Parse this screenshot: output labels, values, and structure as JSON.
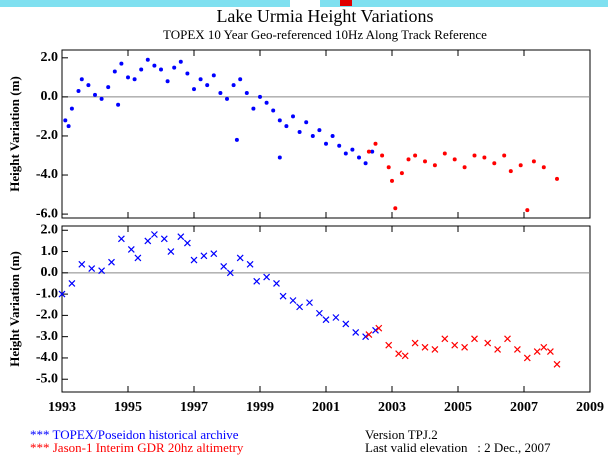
{
  "chart_data": [
    {
      "type": "scatter",
      "title": "Lake Urmia Height Variations",
      "subtitle": "TOPEX 10 Year Geo-referenced 10Hz Along Track Reference",
      "ylabel": "Height Variation (m)",
      "marker": "dot",
      "xlim": [
        1993,
        2009
      ],
      "ylim": [
        -6.2,
        2.4
      ],
      "yticks": [
        {
          "value": 2,
          "label": "2.0"
        },
        {
          "value": 0,
          "label": "0.0"
        },
        {
          "value": -2,
          "label": "-2.0"
        },
        {
          "value": -4,
          "label": "-4.0"
        },
        {
          "value": -6,
          "label": "-6.0"
        }
      ],
      "series": [
        {
          "name": "*** TOPEX/Poseidon historical archive",
          "color": "#0000ff",
          "x": [
            1993.1,
            1993.2,
            1993.3,
            1993.5,
            1993.6,
            1993.8,
            1994.0,
            1994.2,
            1994.4,
            1994.6,
            1994.7,
            1994.8,
            1995.0,
            1995.2,
            1995.4,
            1995.6,
            1995.8,
            1996.0,
            1996.2,
            1996.4,
            1996.6,
            1996.8,
            1997.0,
            1997.2,
            1997.4,
            1997.6,
            1997.8,
            1998.0,
            1998.2,
            1998.3,
            1998.4,
            1998.6,
            1998.8,
            1999.0,
            1999.2,
            1999.4,
            1999.6,
            1999.6,
            1999.8,
            2000.0,
            2000.2,
            2000.4,
            2000.6,
            2000.8,
            2001.0,
            2001.2,
            2001.4,
            2001.6,
            2001.8,
            2002.0,
            2002.2,
            2002.4
          ],
          "values": [
            -1.2,
            -1.5,
            -0.6,
            0.3,
            0.9,
            0.6,
            0.1,
            -0.1,
            0.5,
            1.3,
            -0.4,
            1.7,
            1.0,
            0.9,
            1.4,
            1.9,
            1.6,
            1.4,
            0.8,
            1.5,
            1.8,
            1.2,
            0.4,
            0.9,
            0.6,
            1.1,
            0.2,
            -0.1,
            0.6,
            -2.2,
            0.9,
            0.2,
            -0.6,
            0.0,
            -0.3,
            -0.7,
            -1.2,
            -3.1,
            -1.5,
            -1.0,
            -1.8,
            -1.3,
            -2.0,
            -1.7,
            -2.4,
            -2.0,
            -2.5,
            -2.9,
            -2.7,
            -3.1,
            -3.4,
            -2.8
          ]
        },
        {
          "name": "*** Jason-1 Interim GDR 20hz altimetry",
          "color": "#ff0000",
          "x": [
            2002.3,
            2002.5,
            2002.7,
            2002.9,
            2003.0,
            2003.1,
            2003.3,
            2003.5,
            2003.7,
            2004.0,
            2004.3,
            2004.6,
            2004.9,
            2005.2,
            2005.5,
            2005.8,
            2006.1,
            2006.4,
            2006.6,
            2006.9,
            2007.1,
            2007.3,
            2007.6,
            2008.0
          ],
          "values": [
            -2.8,
            -2.4,
            -3.0,
            -3.6,
            -4.3,
            -5.7,
            -3.9,
            -3.2,
            -3.0,
            -3.3,
            -3.5,
            -2.9,
            -3.2,
            -3.6,
            -3.0,
            -3.1,
            -3.4,
            -3.0,
            -3.8,
            -3.5,
            -5.8,
            -3.3,
            -3.6,
            -4.2
          ]
        }
      ]
    },
    {
      "type": "scatter",
      "ylabel": "Height Variation (m)",
      "marker": "x",
      "xlim": [
        1993,
        2009
      ],
      "xticks": [
        1993,
        1995,
        1997,
        1999,
        2001,
        2003,
        2005,
        2007,
        2009
      ],
      "ylim": [
        -5.6,
        2.2
      ],
      "yticks": [
        {
          "value": 2,
          "label": "2.0"
        },
        {
          "value": 1,
          "label": "1.0"
        },
        {
          "value": 0,
          "label": "0.0"
        },
        {
          "value": -1,
          "label": "-1.0"
        },
        {
          "value": -2,
          "label": "-2.0"
        },
        {
          "value": -3,
          "label": "-3.0"
        },
        {
          "value": -4,
          "label": "-4.0"
        },
        {
          "value": -5,
          "label": "-5.0"
        }
      ],
      "series": [
        {
          "name": "*** TOPEX/Poseidon historical archive",
          "color": "#0000ff",
          "x": [
            1993.0,
            1993.3,
            1993.6,
            1993.9,
            1994.2,
            1994.5,
            1994.8,
            1995.1,
            1995.3,
            1995.6,
            1995.8,
            1996.1,
            1996.3,
            1996.6,
            1996.8,
            1997.0,
            1997.3,
            1997.6,
            1997.9,
            1998.1,
            1998.4,
            1998.7,
            1998.9,
            1999.2,
            1999.5,
            1999.7,
            2000.0,
            2000.2,
            2000.5,
            2000.8,
            2001.0,
            2001.3,
            2001.6,
            2001.9,
            2002.2,
            2002.5
          ],
          "values": [
            -1.0,
            -0.5,
            0.4,
            0.2,
            0.1,
            0.5,
            1.6,
            1.1,
            0.7,
            1.5,
            1.8,
            1.6,
            1.0,
            1.7,
            1.4,
            0.6,
            0.8,
            0.9,
            0.3,
            0.0,
            0.7,
            0.4,
            -0.4,
            -0.2,
            -0.5,
            -1.1,
            -1.3,
            -1.6,
            -1.4,
            -1.9,
            -2.2,
            -2.1,
            -2.4,
            -2.8,
            -3.0,
            -2.7
          ]
        },
        {
          "name": "*** Jason-1 Interim GDR 20hz altimetry",
          "color": "#ff0000",
          "x": [
            2002.3,
            2002.6,
            2002.9,
            2003.2,
            2003.4,
            2003.7,
            2004.0,
            2004.3,
            2004.6,
            2004.9,
            2005.2,
            2005.5,
            2005.9,
            2006.2,
            2006.5,
            2006.8,
            2007.1,
            2007.4,
            2007.6,
            2007.8,
            2008.0
          ],
          "values": [
            -2.9,
            -2.6,
            -3.4,
            -3.8,
            -3.9,
            -3.3,
            -3.5,
            -3.6,
            -3.1,
            -3.4,
            -3.5,
            -3.1,
            -3.3,
            -3.6,
            -3.1,
            -3.6,
            -4.0,
            -3.7,
            -3.5,
            -3.7,
            -4.3
          ]
        }
      ],
      "annotations": [
        "Version TPJ.2",
        "Last valid elevation   : 2 Dec., 2007"
      ]
    }
  ]
}
